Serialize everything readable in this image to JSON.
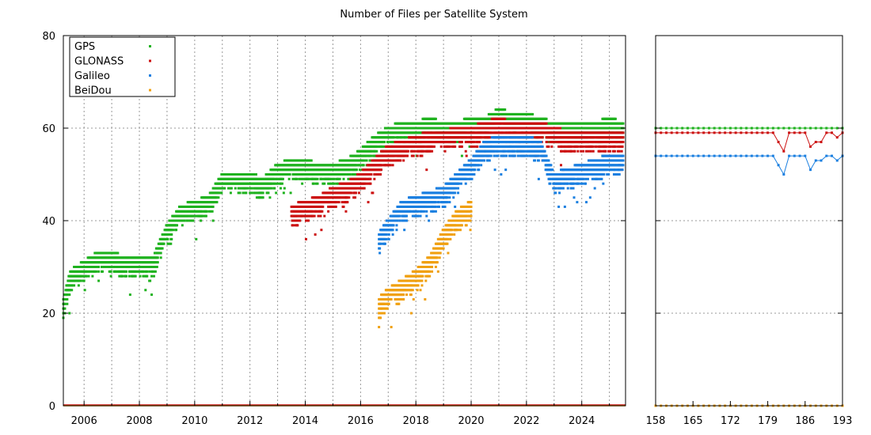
{
  "chart_data": [
    {
      "panel": "main",
      "type": "scatter",
      "title": "Number of Files per Satellite System",
      "xlabel": "",
      "ylabel": "",
      "x_range": [
        "2005-04",
        "2025-08"
      ],
      "ylim": [
        0,
        80
      ],
      "x_ticks": [
        "2006",
        "2008",
        "2010",
        "2012",
        "2014",
        "2016",
        "2018",
        "2020",
        "2022",
        "2024"
      ],
      "y_ticks": [
        "0",
        "20",
        "40",
        "60",
        "80"
      ],
      "grid": true,
      "legend_position": "top-left",
      "series": [
        {
          "name": "GPS",
          "color": "#1fb21f",
          "x": [
            "2005-04",
            "2005-07",
            "2006-01",
            "2006-07",
            "2007-01",
            "2007-07",
            "2008-01",
            "2008-07",
            "2009-01",
            "2009-07",
            "2010-01",
            "2010-07",
            "2011-01",
            "2011-07",
            "2012-01",
            "2012-07",
            "2013-01",
            "2013-07",
            "2014-01",
            "2014-07",
            "2015-01",
            "2015-07",
            "2016-01",
            "2016-07",
            "2017-01",
            "2017-07",
            "2018-01",
            "2018-07",
            "2019-01",
            "2019-07",
            "2020-01",
            "2020-07",
            "2021-01",
            "2021-07",
            "2022-01",
            "2022-07",
            "2023-01",
            "2023-07",
            "2024-01",
            "2024-07",
            "2025-01",
            "2025-07"
          ],
          "y": [
            22,
            28,
            30,
            32,
            32,
            31,
            31,
            31,
            38,
            42,
            43,
            44,
            49,
            49,
            49,
            48,
            51,
            52,
            52,
            51,
            51,
            52,
            54,
            57,
            59,
            60,
            60,
            61,
            60,
            60,
            61,
            61,
            63,
            62,
            62,
            61,
            60,
            60,
            60,
            60,
            61,
            60
          ]
        },
        {
          "name": "GLONASS",
          "color": "#cc1111",
          "x": [
            "2013-07",
            "2014-01",
            "2014-07",
            "2015-01",
            "2015-07",
            "2016-01",
            "2016-07",
            "2017-01",
            "2017-07",
            "2018-01",
            "2018-07",
            "2019-01",
            "2019-07",
            "2020-01",
            "2020-07",
            "2021-01",
            "2021-07",
            "2022-01",
            "2022-07",
            "2023-01",
            "2023-07",
            "2024-01",
            "2024-07",
            "2025-01",
            "2025-07"
          ],
          "y": [
            42,
            43,
            44,
            46,
            47,
            49,
            52,
            55,
            56,
            57,
            58,
            58,
            59,
            59,
            60,
            61,
            60,
            60,
            60,
            59,
            58,
            58,
            58,
            58,
            58
          ]
        },
        {
          "name": "Galileo",
          "color": "#1a7fe0",
          "x": [
            "2016-09",
            "2017-01",
            "2017-07",
            "2018-01",
            "2018-07",
            "2019-01",
            "2019-07",
            "2020-01",
            "2020-07",
            "2021-01",
            "2021-07",
            "2022-01",
            "2022-07",
            "2023-01",
            "2023-07",
            "2024-01",
            "2024-07",
            "2025-01",
            "2025-07"
          ],
          "y": [
            36,
            39,
            43,
            44,
            45,
            46,
            49,
            52,
            56,
            57,
            57,
            57,
            56,
            49,
            50,
            51,
            52,
            53,
            53
          ]
        },
        {
          "name": "BeiDou",
          "color": "#f0a010",
          "x": [
            "2016-09",
            "2017-01",
            "2017-07",
            "2018-01",
            "2018-07",
            "2019-01",
            "2019-07",
            "2020-01"
          ],
          "y": [
            22,
            24,
            26,
            28,
            31,
            37,
            41,
            43
          ]
        }
      ]
    },
    {
      "panel": "recent",
      "type": "line",
      "xlim": [
        158,
        193
      ],
      "ylim": [
        0,
        80
      ],
      "x_ticks": [
        "158",
        "165",
        "172",
        "179",
        "186",
        "193"
      ],
      "grid": true,
      "x": [
        158,
        159,
        160,
        161,
        162,
        163,
        164,
        165,
        166,
        167,
        168,
        169,
        170,
        171,
        172,
        173,
        174,
        175,
        176,
        177,
        178,
        179,
        180,
        181,
        182,
        183,
        184,
        185,
        186,
        187,
        188,
        189,
        190,
        191,
        192,
        193
      ],
      "series": [
        {
          "name": "GPS",
          "color": "#1fb21f",
          "values": [
            60,
            60,
            60,
            60,
            60,
            60,
            60,
            60,
            60,
            60,
            60,
            60,
            60,
            60,
            60,
            60,
            60,
            60,
            60,
            60,
            60,
            60,
            60,
            60,
            60,
            60,
            60,
            60,
            60,
            60,
            60,
            60,
            60,
            60,
            60,
            60
          ]
        },
        {
          "name": "GLONASS",
          "color": "#cc1111",
          "values": [
            59,
            59,
            59,
            59,
            59,
            59,
            59,
            59,
            59,
            59,
            59,
            59,
            59,
            59,
            59,
            59,
            59,
            59,
            59,
            59,
            59,
            59,
            59,
            57,
            55,
            59,
            59,
            59,
            59,
            56,
            57,
            57,
            59,
            59,
            58,
            59
          ]
        },
        {
          "name": "Galileo",
          "color": "#1a7fe0",
          "values": [
            54,
            54,
            54,
            54,
            54,
            54,
            54,
            54,
            54,
            54,
            54,
            54,
            54,
            54,
            54,
            54,
            54,
            54,
            54,
            54,
            54,
            54,
            54,
            52,
            50,
            54,
            54,
            54,
            54,
            51,
            53,
            53,
            54,
            54,
            53,
            54
          ]
        },
        {
          "name": "BeiDou",
          "color": "#f0a010",
          "values": [
            0,
            0,
            0,
            0,
            0,
            0,
            0,
            0,
            0,
            0,
            0,
            0,
            0,
            0,
            0,
            0,
            0,
            0,
            0,
            0,
            0,
            0,
            0,
            0,
            0,
            0,
            0,
            0,
            0,
            0,
            0,
            0,
            0,
            0,
            0,
            0
          ]
        }
      ]
    }
  ]
}
